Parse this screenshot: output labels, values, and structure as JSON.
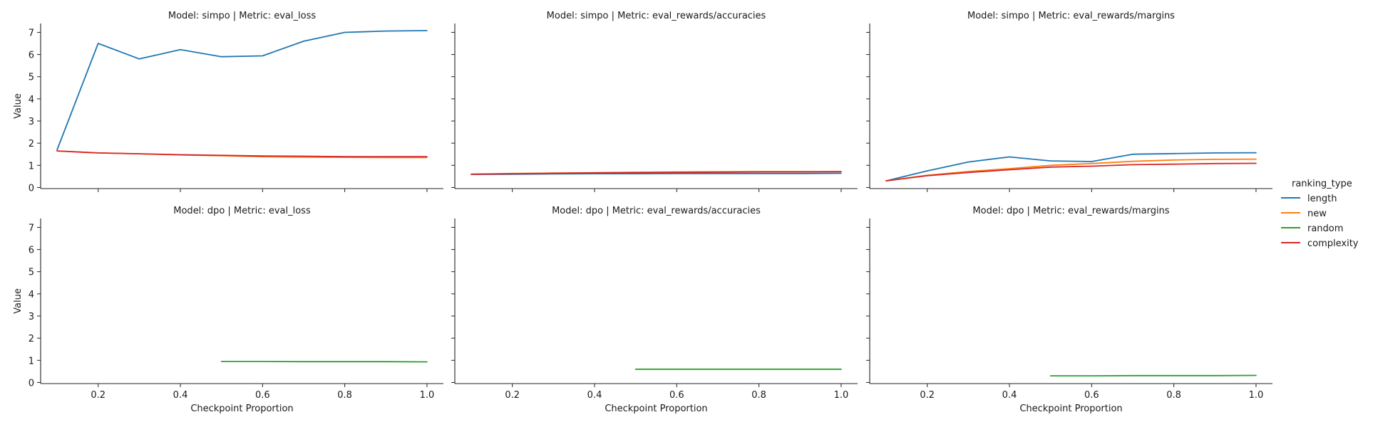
{
  "chart_data": {
    "type": "line",
    "facet_grid": {
      "rows": 2,
      "cols": 3,
      "shared_y": true,
      "shared_x": true
    },
    "xlabel": "Checkpoint Proportion",
    "ylabel": "Value",
    "xlim": [
      0.06,
      1.04
    ],
    "ylim": [
      -0.05,
      7.4
    ],
    "xticks": [
      0.2,
      0.4,
      0.6,
      0.8,
      1.0
    ],
    "yticks": [
      0,
      1,
      2,
      3,
      4,
      5,
      6,
      7
    ],
    "grid": false,
    "legend": {
      "title": "ranking_type",
      "placement": "right-center",
      "entries": [
        {
          "name": "length",
          "color": "#1f77b4"
        },
        {
          "name": "new",
          "color": "#ff7f0e"
        },
        {
          "name": "random",
          "color": "#2ca02c"
        },
        {
          "name": "complexity",
          "color": "#d62728"
        }
      ]
    },
    "panels": [
      {
        "title": "Model: simpo | Metric: eval_loss",
        "series": [
          {
            "name": "length",
            "x": [
              0.1,
              0.2,
              0.3,
              0.4,
              0.5,
              0.6,
              0.7,
              0.8,
              0.9,
              1.0
            ],
            "y": [
              1.7,
              6.5,
              5.8,
              6.22,
              5.9,
              5.94,
              6.6,
              7.0,
              7.06,
              7.08
            ]
          },
          {
            "name": "new",
            "x": [
              0.1,
              0.2,
              0.3,
              0.4,
              0.5,
              0.6,
              0.7,
              0.8,
              0.9,
              1.0
            ],
            "y": [
              1.65,
              1.56,
              1.52,
              1.47,
              1.43,
              1.39,
              1.37,
              1.36,
              1.35,
              1.35
            ]
          },
          {
            "name": "complexity",
            "x": [
              0.1,
              0.2,
              0.3,
              0.4,
              0.5,
              0.6,
              0.7,
              0.8,
              0.9,
              1.0
            ],
            "y": [
              1.65,
              1.56,
              1.52,
              1.48,
              1.45,
              1.42,
              1.41,
              1.39,
              1.39,
              1.39
            ]
          }
        ]
      },
      {
        "title": "Model: simpo | Metric: eval_rewards/accuracies",
        "series": [
          {
            "name": "length",
            "x": [
              0.1,
              0.2,
              0.3,
              0.4,
              0.5,
              0.6,
              0.7,
              0.8,
              0.9,
              1.0
            ],
            "y": [
              0.59,
              0.6,
              0.61,
              0.62,
              0.62,
              0.63,
              0.63,
              0.63,
              0.63,
              0.64
            ]
          },
          {
            "name": "new",
            "x": [
              0.1,
              0.2,
              0.3,
              0.4,
              0.5,
              0.6,
              0.7,
              0.8,
              0.9,
              1.0
            ],
            "y": [
              0.6,
              0.63,
              0.65,
              0.67,
              0.69,
              0.7,
              0.71,
              0.72,
              0.72,
              0.72
            ]
          },
          {
            "name": "complexity",
            "x": [
              0.1,
              0.2,
              0.3,
              0.4,
              0.5,
              0.6,
              0.7,
              0.8,
              0.9,
              1.0
            ],
            "y": [
              0.6,
              0.62,
              0.64,
              0.66,
              0.67,
              0.68,
              0.69,
              0.7,
              0.7,
              0.71
            ]
          }
        ]
      },
      {
        "title": "Model: simpo | Metric: eval_rewards/margins",
        "series": [
          {
            "name": "length",
            "x": [
              0.1,
              0.2,
              0.3,
              0.4,
              0.5,
              0.6,
              0.7,
              0.8,
              0.9,
              1.0
            ],
            "y": [
              0.3,
              0.75,
              1.15,
              1.38,
              1.2,
              1.17,
              1.5,
              1.53,
              1.56,
              1.57
            ]
          },
          {
            "name": "new",
            "x": [
              0.1,
              0.2,
              0.3,
              0.4,
              0.5,
              0.6,
              0.7,
              0.8,
              0.9,
              1.0
            ],
            "y": [
              0.3,
              0.55,
              0.72,
              0.85,
              1.0,
              1.08,
              1.18,
              1.24,
              1.27,
              1.28
            ]
          },
          {
            "name": "complexity",
            "x": [
              0.1,
              0.2,
              0.3,
              0.4,
              0.5,
              0.6,
              0.7,
              0.8,
              0.9,
              1.0
            ],
            "y": [
              0.3,
              0.53,
              0.68,
              0.8,
              0.92,
              0.96,
              1.03,
              1.05,
              1.08,
              1.09
            ]
          }
        ]
      },
      {
        "title": "Model: dpo | Metric: eval_loss",
        "series": [
          {
            "name": "random",
            "x": [
              0.5,
              0.6,
              0.7,
              0.8,
              0.9,
              1.0
            ],
            "y": [
              0.95,
              0.95,
              0.94,
              0.94,
              0.94,
              0.93
            ]
          }
        ]
      },
      {
        "title": "Model: dpo | Metric: eval_rewards/accuracies",
        "series": [
          {
            "name": "random",
            "x": [
              0.5,
              0.6,
              0.7,
              0.8,
              0.9,
              1.0
            ],
            "y": [
              0.6,
              0.6,
              0.6,
              0.6,
              0.6,
              0.6
            ]
          }
        ]
      },
      {
        "title": "Model: dpo | Metric: eval_rewards/margins",
        "series": [
          {
            "name": "random",
            "x": [
              0.5,
              0.6,
              0.7,
              0.8,
              0.9,
              1.0
            ],
            "y": [
              0.3,
              0.3,
              0.31,
              0.31,
              0.31,
              0.32
            ]
          }
        ]
      }
    ]
  }
}
